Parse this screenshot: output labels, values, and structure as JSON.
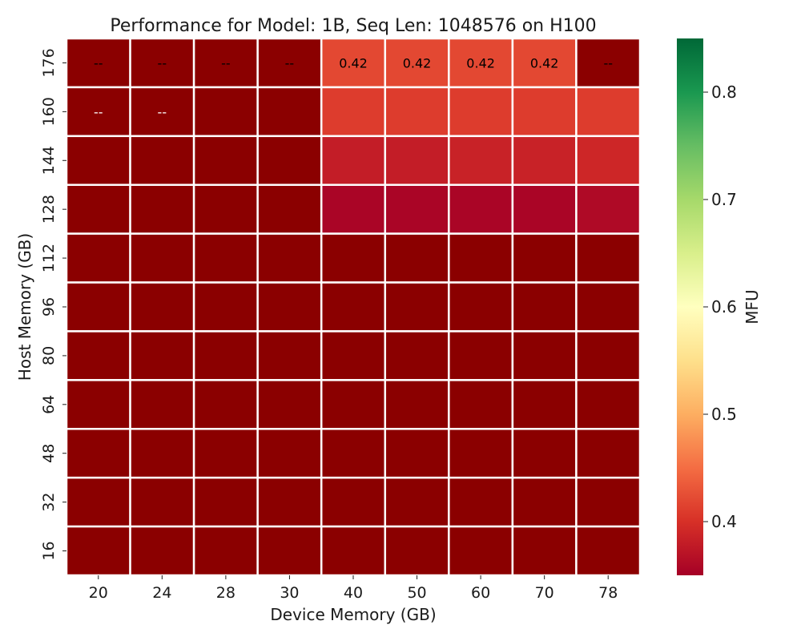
{
  "chart_data": {
    "type": "heatmap",
    "title": "Performance for Model: 1B, Seq Len: 1048576 on H100",
    "xlabel": "Device Memory (GB)",
    "ylabel": "Host Memory (GB)",
    "x_categories": [
      "20",
      "24",
      "28",
      "30",
      "40",
      "50",
      "60",
      "70",
      "78"
    ],
    "y_categories": [
      "176",
      "160",
      "144",
      "128",
      "112",
      "96",
      "80",
      "64",
      "48",
      "32",
      "16"
    ],
    "values": [
      [
        null,
        null,
        null,
        null,
        0.42,
        0.42,
        0.42,
        0.42,
        null
      ],
      [
        null,
        null,
        0.3,
        0.3,
        0.41,
        0.41,
        0.41,
        0.41,
        0.41
      ],
      [
        0.3,
        0.3,
        0.3,
        0.3,
        0.38,
        0.38,
        0.385,
        0.385,
        0.39
      ],
      [
        0.3,
        0.3,
        0.3,
        0.3,
        0.355,
        0.355,
        0.355,
        0.355,
        0.36
      ],
      [
        0.3,
        0.3,
        0.3,
        0.3,
        0.3,
        0.3,
        0.3,
        0.3,
        0.3
      ],
      [
        0.3,
        0.3,
        0.3,
        0.3,
        0.3,
        0.3,
        0.3,
        0.3,
        0.3
      ],
      [
        0.3,
        0.3,
        0.3,
        0.3,
        0.3,
        0.3,
        0.3,
        0.3,
        0.3
      ],
      [
        0.3,
        0.3,
        0.3,
        0.3,
        0.3,
        0.3,
        0.3,
        0.3,
        0.3
      ],
      [
        0.3,
        0.3,
        0.3,
        0.3,
        0.3,
        0.3,
        0.3,
        0.3,
        0.3
      ],
      [
        0.3,
        0.3,
        0.3,
        0.3,
        0.3,
        0.3,
        0.3,
        0.3,
        0.3
      ],
      [
        0.3,
        0.3,
        0.3,
        0.3,
        0.3,
        0.3,
        0.3,
        0.3,
        0.3
      ]
    ],
    "cell_labels": [
      [
        "--",
        "--",
        "--",
        "--",
        "0.42",
        "0.42",
        "0.42",
        "0.42",
        "--"
      ],
      [
        "--",
        "--",
        "",
        "",
        "",
        "",
        "",
        "",
        ""
      ],
      [
        "",
        "",
        "",
        "",
        "",
        "",
        "",
        "",
        ""
      ],
      [
        "",
        "",
        "",
        "",
        "",
        "",
        "",
        "",
        ""
      ],
      [
        "",
        "",
        "",
        "",
        "",
        "",
        "",
        "",
        ""
      ],
      [
        "",
        "",
        "",
        "",
        "",
        "",
        "",
        "",
        ""
      ],
      [
        "",
        "",
        "",
        "",
        "",
        "",
        "",
        "",
        ""
      ],
      [
        "",
        "",
        "",
        "",
        "",
        "",
        "",
        "",
        ""
      ],
      [
        "",
        "",
        "",
        "",
        "",
        "",
        "",
        "",
        ""
      ],
      [
        "",
        "",
        "",
        "",
        "",
        "",
        "",
        "",
        ""
      ],
      [
        "",
        "",
        "",
        "",
        "",
        "",
        "",
        "",
        ""
      ]
    ],
    "missing_color": "#8b0000",
    "colormap": "RdYlGn",
    "colormap_stops": [
      "#a50026",
      "#d73027",
      "#f46d43",
      "#fdae61",
      "#fee08b",
      "#ffffbf",
      "#d9ef8b",
      "#a6d96a",
      "#66bd63",
      "#1a9850",
      "#006837"
    ],
    "colorbar": {
      "label": "MFU",
      "range": [
        0.35,
        0.85
      ],
      "ticks": [
        0.4,
        0.5,
        0.6,
        0.7,
        0.8
      ],
      "tick_labels": [
        "0.4",
        "0.5",
        "0.6",
        "0.7",
        "0.8"
      ]
    },
    "cell_border_color": "#ffffff",
    "grid": false
  }
}
